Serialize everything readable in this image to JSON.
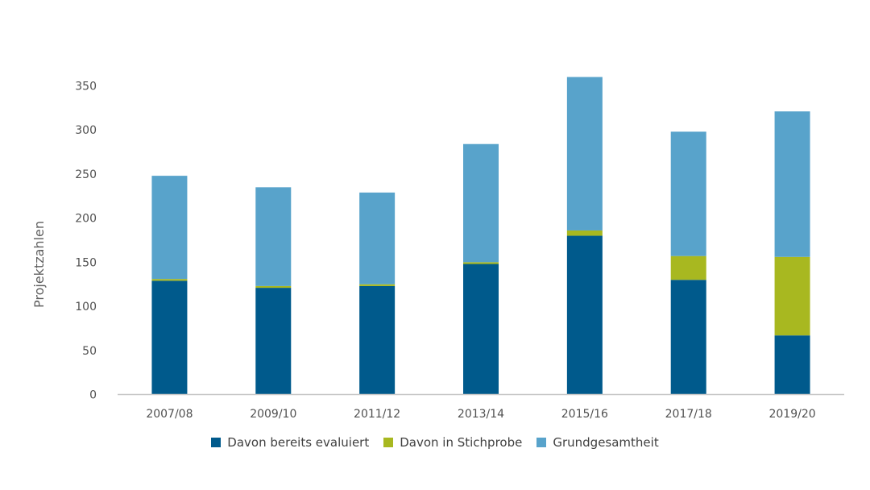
{
  "chart_data": {
    "type": "bar",
    "stacked": true,
    "categories": [
      "2007/08",
      "2009/10",
      "2011/12",
      "2013/14",
      "2015/16",
      "2017/18",
      "2019/20"
    ],
    "series": [
      {
        "name": "Davon bereits evaluiert",
        "color": "#005a8c",
        "values": [
          129,
          121,
          123,
          148,
          180,
          130,
          67
        ]
      },
      {
        "name": "Davon in Stichprobe",
        "color": "#a8b820",
        "values": [
          2,
          2,
          2,
          2,
          6,
          27,
          89
        ]
      },
      {
        "name": "Grundgesamtheit",
        "color": "#58a3cb",
        "values": [
          117,
          112,
          104,
          134,
          174,
          141,
          165
        ]
      }
    ],
    "totals": [
      248,
      235,
      229,
      284,
      360,
      298,
      321
    ],
    "ylabel": "Projektzahlen",
    "xlabel": "",
    "ylim": [
      0,
      350
    ],
    "yticks": [
      0,
      50,
      100,
      150,
      200,
      250,
      300,
      350
    ],
    "grid": false,
    "legend_position": "bottom"
  }
}
